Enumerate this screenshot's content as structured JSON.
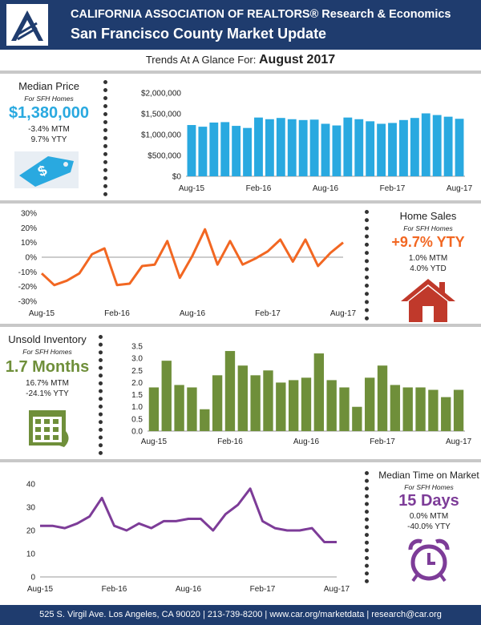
{
  "header": {
    "line1": "CALIFORNIA ASSOCIATION OF REALTORS® Research & Economics",
    "line2": "San Francisco County Market Update"
  },
  "trend": {
    "prefix": "Trends At A Glance For:",
    "month": "August 2017"
  },
  "median_price": {
    "title": "Median Price",
    "subtitle": "For SFH Homes",
    "value": "$1,380,000",
    "mtm": "-3.4% MTM",
    "yty": "9.7% YTY",
    "icon": "price-tag-icon",
    "color": "#29a9e0"
  },
  "home_sales": {
    "title": "Home Sales",
    "subtitle": "For SFH Homes",
    "value": "+9.7% YTY",
    "mtm": "1.0% MTM",
    "ytd": "4.0% YTD",
    "icon": "house-icon",
    "color": "#f26722"
  },
  "unsold_inventory": {
    "title": "Unsold Inventory",
    "subtitle": "For SFH Homes",
    "value": "1.7 Months",
    "mtm": "16.7% MTM",
    "yty": "-24.1% YTY",
    "icon": "calendar-icon",
    "color": "#6f8f3a"
  },
  "time_on_market": {
    "title": "Median Time on Market",
    "subtitle": "For SFH Homes",
    "value": "15 Days",
    "mtm": "0.0% MTM",
    "yty": "-40.0% YTY",
    "icon": "alarm-clock-icon",
    "color": "#7d3c98"
  },
  "footer": {
    "text": "525 S. Virgil Ave. Los Angeles, CA 90020 | 213-739-8200 | www.car.org/marketdata | research@car.org"
  },
  "chart_data": [
    {
      "type": "bar",
      "color": "#29a9e0",
      "ylim": [
        0,
        2000000
      ],
      "yticks": [
        "$0",
        "$500,000",
        "$1,000,000",
        "$1,500,000",
        "$2,000,000"
      ],
      "xticks": [
        "Aug-15",
        "Feb-16",
        "Aug-16",
        "Feb-17",
        "Aug-17"
      ],
      "values": [
        1230000,
        1190000,
        1290000,
        1300000,
        1210000,
        1160000,
        1410000,
        1370000,
        1400000,
        1370000,
        1350000,
        1360000,
        1260000,
        1220000,
        1410000,
        1370000,
        1320000,
        1260000,
        1280000,
        1350000,
        1400000,
        1510000,
        1470000,
        1430000,
        1380000
      ]
    },
    {
      "type": "line",
      "color": "#f26722",
      "ylim": [
        -30,
        30
      ],
      "yticks": [
        "-30%",
        "-20%",
        "-10%",
        "0%",
        "10%",
        "20%",
        "30%"
      ],
      "xticks": [
        "Aug-15",
        "Feb-16",
        "Aug-16",
        "Feb-17",
        "Aug-17"
      ],
      "values": [
        -11,
        -19,
        -16,
        -11,
        2,
        6,
        -19,
        -18,
        -6,
        -5,
        11,
        -14,
        1,
        19,
        -5,
        11,
        -5,
        -1,
        4,
        12,
        -3,
        12,
        -6,
        3,
        10
      ]
    },
    {
      "type": "bar",
      "color": "#6f8f3a",
      "ylim": [
        0,
        3.5
      ],
      "yticks": [
        "0.0",
        "0.5",
        "1.0",
        "1.5",
        "2.0",
        "2.5",
        "3.0",
        "3.5"
      ],
      "xticks": [
        "Aug-15",
        "Feb-16",
        "Aug-16",
        "Feb-17",
        "Aug-17"
      ],
      "values": [
        1.8,
        2.9,
        1.9,
        1.8,
        0.9,
        2.3,
        3.3,
        2.7,
        2.3,
        2.5,
        2.0,
        2.1,
        2.2,
        3.2,
        2.1,
        1.8,
        1.0,
        2.2,
        2.7,
        1.9,
        1.8,
        1.8,
        1.7,
        1.4,
        1.7
      ]
    },
    {
      "type": "line",
      "color": "#7d3c98",
      "ylim": [
        0,
        40
      ],
      "yticks": [
        "0",
        "10",
        "20",
        "30",
        "40"
      ],
      "xticks": [
        "Aug-15",
        "Feb-16",
        "Aug-16",
        "Feb-17",
        "Aug-17"
      ],
      "values": [
        22,
        22,
        21,
        23,
        26,
        34,
        22,
        20,
        23,
        21,
        24,
        24,
        25,
        25,
        20,
        27,
        31,
        38,
        24,
        21,
        20,
        20,
        21,
        15,
        15
      ]
    }
  ]
}
